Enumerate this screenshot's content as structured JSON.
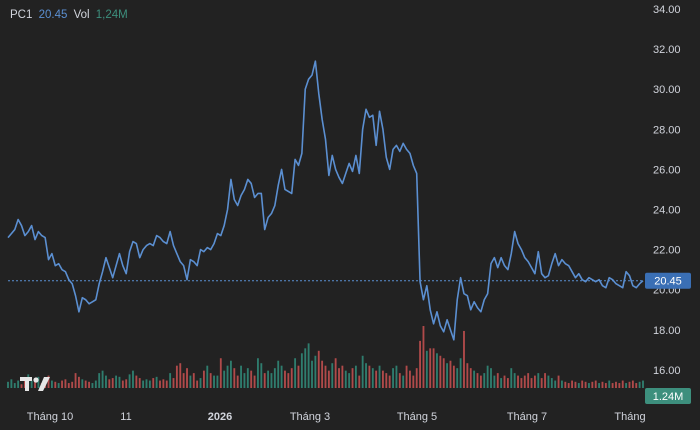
{
  "legend": {
    "symbol": "PC1",
    "last_price": "20.45",
    "vol_label": "Vol",
    "vol_value": "1,24M"
  },
  "colors": {
    "background": "#222222",
    "line": "#5b8fd1",
    "up_volume": "#2f7d6e",
    "down_volume": "#b04a4a",
    "axis_text": "#d1d4dc",
    "price_tag": "#3a6fb5",
    "vol_tag": "#3d8f7d"
  },
  "chart_data": {
    "type": "line",
    "title": "",
    "xlabel": "",
    "ylabel": "",
    "ylim": [
      14.7,
      34.0
    ],
    "y_ticks": [
      "34.00",
      "32.00",
      "30.00",
      "28.00",
      "26.00",
      "24.00",
      "22.00",
      "20.00",
      "18.00",
      "16.00"
    ],
    "x_tick_labels": [
      {
        "label": "Tháng 10",
        "bold": false
      },
      {
        "label": "11",
        "bold": false
      },
      {
        "label": "2026",
        "bold": true
      },
      {
        "label": "Tháng 3",
        "bold": false
      },
      {
        "label": "Tháng 5",
        "bold": false
      },
      {
        "label": "Tháng 7",
        "bold": false
      },
      {
        "label": "Tháng",
        "bold": false
      }
    ],
    "last_price": 20.45,
    "last_price_label": "20.45",
    "last_volume_label": "1.24M",
    "series": [
      {
        "values": [
          22.6,
          22.8,
          23.0,
          23.5,
          23.2,
          22.7,
          22.9,
          23.2,
          22.5,
          22.9,
          22.7,
          22.6,
          21.5,
          21.8,
          21.2,
          21.3,
          21.0,
          20.9,
          20.5,
          20.3,
          19.7,
          18.9,
          19.6,
          19.5,
          19.3,
          19.4,
          19.5,
          20.3,
          20.9,
          21.6,
          21.1,
          20.6,
          21.2,
          21.8,
          21.2,
          20.8,
          21.9,
          22.4,
          22.3,
          21.6,
          22.0,
          22.2,
          22.3,
          22.2,
          22.7,
          22.6,
          22.4,
          22.3,
          22.9,
          22.2,
          21.8,
          21.4,
          21.2,
          20.5,
          21.5,
          21.4,
          21.2,
          22.0,
          21.9,
          22.1,
          22.0,
          22.3,
          22.8,
          22.7,
          23.2,
          24.0,
          25.5,
          24.5,
          24.2,
          24.7,
          25.0,
          25.5,
          25.3,
          24.6,
          24.8,
          24.8,
          23.0,
          23.6,
          23.8,
          24.2,
          25.2,
          26.0,
          25.0,
          24.9,
          24.8,
          26.5,
          26.2,
          26.8,
          30.0,
          30.5,
          30.7,
          31.4,
          29.8,
          28.5,
          27.5,
          25.7,
          26.7,
          26.0,
          25.6,
          25.3,
          25.8,
          26.3,
          25.9,
          26.7,
          25.8,
          28.0,
          29.0,
          28.6,
          28.7,
          27.2,
          28.9,
          28.0,
          26.6,
          26.0,
          27.0,
          27.2,
          26.9,
          27.3,
          27.0,
          26.8,
          26.2,
          25.8,
          20.4,
          19.5,
          20.2,
          19.0,
          18.3,
          18.9,
          18.2,
          17.9,
          18.5,
          18.0,
          17.5,
          19.5,
          20.6,
          19.8,
          19.7,
          19.0,
          19.4,
          19.1,
          18.9,
          19.5,
          19.8,
          21.3,
          21.6,
          21.1,
          21.6,
          21.2,
          21.0,
          21.8,
          22.9,
          22.3,
          22.0,
          21.6,
          21.4,
          21.1,
          20.8,
          21.9,
          20.8,
          20.6,
          20.7,
          21.3,
          21.8,
          21.2,
          21.5,
          21.3,
          21.2,
          20.9,
          20.6,
          20.8,
          20.5,
          20.4,
          20.6,
          20.5,
          20.4,
          20.5,
          20.2,
          20.1,
          20.6,
          20.5,
          20.3,
          20.2,
          20.1,
          20.9,
          20.7,
          20.2,
          20.1,
          20.3,
          20.45
        ]
      }
    ],
    "volume": {
      "values": [
        0.25,
        0.35,
        0.2,
        0.3,
        0.15,
        0.4,
        0.55,
        0.3,
        0.25,
        0.45,
        0.2,
        0.3,
        0.5,
        0.3,
        0.25,
        0.2,
        0.3,
        0.35,
        0.2,
        0.25,
        0.6,
        0.45,
        0.35,
        0.3,
        0.25,
        0.2,
        0.3,
        0.6,
        0.7,
        0.5,
        0.35,
        0.4,
        0.5,
        0.45,
        0.3,
        0.35,
        0.55,
        0.7,
        0.5,
        0.4,
        0.3,
        0.35,
        0.3,
        0.4,
        0.45,
        0.3,
        0.35,
        0.3,
        0.6,
        0.4,
        0.9,
        1.0,
        0.6,
        0.8,
        0.5,
        0.6,
        0.3,
        0.4,
        0.7,
        0.9,
        0.6,
        0.5,
        0.5,
        1.2,
        0.7,
        0.9,
        1.1,
        0.8,
        0.5,
        0.9,
        0.6,
        0.8,
        0.7,
        0.5,
        1.2,
        1.0,
        0.6,
        0.7,
        0.6,
        0.8,
        1.1,
        0.9,
        0.7,
        0.6,
        0.8,
        1.2,
        0.9,
        1.4,
        1.6,
        1.8,
        1.1,
        1.3,
        1.5,
        1.1,
        0.9,
        0.7,
        1.0,
        1.2,
        0.8,
        0.9,
        0.7,
        0.6,
        0.8,
        0.9,
        0.5,
        1.3,
        1.0,
        0.9,
        0.8,
        0.7,
        0.9,
        0.7,
        0.6,
        0.5,
        0.8,
        0.9,
        0.6,
        0.5,
        0.9,
        0.7,
        0.5,
        0.8,
        1.9,
        2.5,
        1.5,
        1.6,
        1.6,
        1.4,
        1.3,
        1.2,
        1.0,
        1.1,
        0.9,
        0.8,
        1.2,
        2.3,
        1.0,
        0.8,
        0.7,
        0.6,
        0.5,
        0.6,
        0.9,
        0.8,
        0.5,
        0.6,
        0.4,
        0.5,
        0.4,
        0.8,
        0.6,
        0.5,
        0.4,
        0.5,
        0.6,
        0.4,
        0.5,
        0.6,
        0.4,
        0.6,
        0.5,
        0.4,
        0.3,
        0.5,
        0.3,
        0.25,
        0.2,
        0.3,
        0.25,
        0.2,
        0.3,
        0.25,
        0.2,
        0.25,
        0.3,
        0.2,
        0.25,
        0.2,
        0.3,
        0.2,
        0.25,
        0.2,
        0.3,
        0.2,
        0.25,
        0.3,
        0.2,
        0.25,
        0.3
      ]
    }
  }
}
